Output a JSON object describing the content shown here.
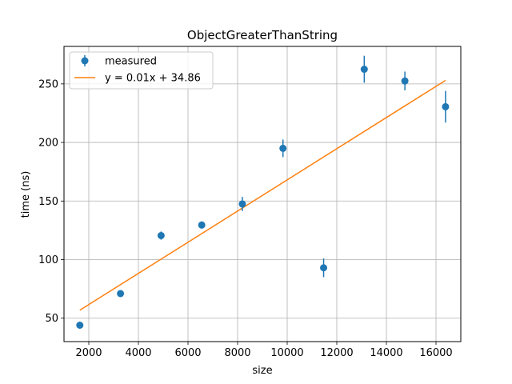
{
  "chart_data": {
    "type": "scatter",
    "title": "ObjectGreaterThanString",
    "xlabel": "size",
    "ylabel": "time (ns)",
    "xlim": [
      1000,
      17000
    ],
    "ylim": [
      30,
      282
    ],
    "xticks": [
      2000,
      4000,
      6000,
      8000,
      10000,
      12000,
      14000,
      16000
    ],
    "yticks": [
      50,
      100,
      150,
      200,
      250
    ],
    "xtick_labels": [
      "2000",
      "4000",
      "6000",
      "8000",
      "10000",
      "12000",
      "14000",
      "16000"
    ],
    "ytick_labels": [
      "50",
      "100",
      "150",
      "200",
      "250"
    ],
    "grid": true,
    "legend_position": "top-left",
    "series": [
      {
        "name": "measured",
        "kind": "errorbar",
        "color": "#1f77b4",
        "x": [
          1638,
          3277,
          4915,
          6554,
          8192,
          9830,
          11469,
          13107,
          14746,
          16384
        ],
        "y": [
          44,
          71,
          120.5,
          129.5,
          147.5,
          195,
          93,
          262.5,
          252.5,
          230.5
        ],
        "err": [
          2,
          2,
          3.5,
          3,
          6,
          7.5,
          8,
          11.5,
          8,
          13.5
        ]
      },
      {
        "name": "y = 0.01x + 34.86",
        "kind": "line",
        "color": "#ff7f0e",
        "x": [
          1638,
          16384
        ],
        "y": [
          56.8,
          253
        ]
      }
    ]
  }
}
